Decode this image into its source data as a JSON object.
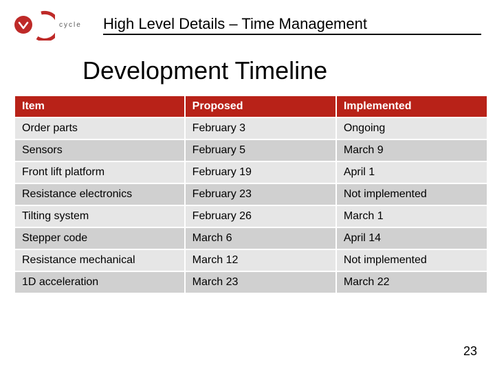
{
  "header": {
    "title": "High Level Details – Time Management",
    "logo_text": "cycle",
    "logo_ring_color": "#be2a28",
    "logo_ring_width": 5,
    "logo_disc_color": "#be2a28",
    "logo_glyph_color": "#ffffff"
  },
  "subtitle": "Development Timeline",
  "table": {
    "type": "table",
    "header_bg": "#b82218",
    "header_text_color": "#ffffff",
    "row_even_bg": "#e6e6e6",
    "row_odd_bg": "#d0d0d0",
    "cell_text_color": "#000000",
    "border_color": "#ffffff",
    "header_fontsize": 16,
    "cell_fontsize": 16,
    "col_widths_pct": [
      36,
      32,
      32
    ],
    "columns": [
      "Item",
      "Proposed",
      "Implemented"
    ],
    "rows": [
      [
        "Order parts",
        "February 3",
        "Ongoing"
      ],
      [
        "Sensors",
        "February 5",
        "March 9"
      ],
      [
        "Front lift platform",
        "February 19",
        "April 1"
      ],
      [
        "Resistance electronics",
        "February 23",
        "Not implemented"
      ],
      [
        "Tilting system",
        "February 26",
        "March 1"
      ],
      [
        "Stepper code",
        "March 6",
        "April 14"
      ],
      [
        "Resistance mechanical",
        "March 12",
        "Not implemented"
      ],
      [
        "1D acceleration",
        "March 23",
        "March 22"
      ]
    ]
  },
  "page_number": "23"
}
